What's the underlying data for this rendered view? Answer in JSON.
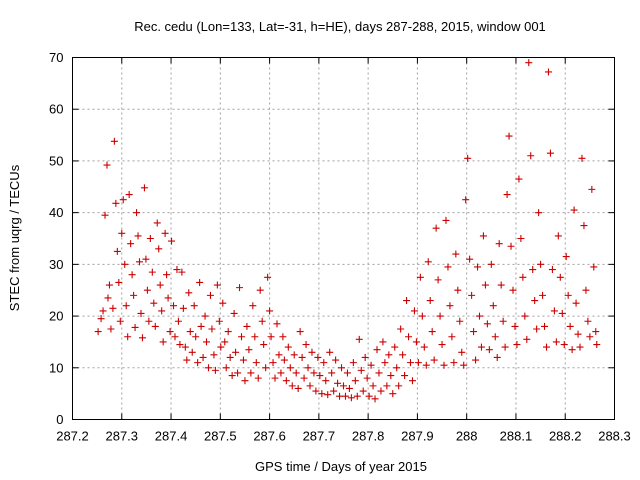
{
  "chart_data": {
    "type": "scatter",
    "title": "Rec. cedu (Lon=133, Lat=-31, h=HE), days 287-288, 2015, window 001",
    "xlabel": "GPS time / Days of year 2015",
    "ylabel": "STEC from uqrg / TECUs",
    "xlim": [
      287.2,
      288.3
    ],
    "ylim": [
      0,
      70
    ],
    "xticks": [
      "287.2",
      "287.3",
      "287.4",
      "287.5",
      "287.6",
      "287.7",
      "287.8",
      "287.9",
      "288",
      "288.1",
      "288.2",
      "288.3"
    ],
    "yticks": [
      "0",
      "10",
      "20",
      "30",
      "40",
      "50",
      "60",
      "70"
    ],
    "grid": true,
    "marker": "plus",
    "color": "#cc0000",
    "points": [
      [
        287.252,
        17
      ],
      [
        287.258,
        19.5
      ],
      [
        287.262,
        21
      ],
      [
        287.266,
        39.5
      ],
      [
        287.27,
        49.2
      ],
      [
        287.272,
        23.5
      ],
      [
        287.275,
        26
      ],
      [
        287.278,
        17.5
      ],
      [
        287.282,
        21.5
      ],
      [
        287.285,
        53.8
      ],
      [
        287.288,
        41.8
      ],
      [
        287.291,
        32.5
      ],
      [
        287.294,
        26.5
      ],
      [
        287.297,
        19
      ],
      [
        287.3,
        36
      ],
      [
        287.303,
        42.5
      ],
      [
        287.306,
        30
      ],
      [
        287.309,
        22
      ],
      [
        287.312,
        16
      ],
      [
        287.315,
        43.5
      ],
      [
        287.318,
        34
      ],
      [
        287.321,
        28
      ],
      [
        287.324,
        24
      ],
      [
        287.327,
        17.8
      ],
      [
        287.33,
        40
      ],
      [
        287.333,
        35.5
      ],
      [
        287.336,
        30.5
      ],
      [
        287.339,
        20.5
      ],
      [
        287.342,
        15.8
      ],
      [
        287.346,
        44.8
      ],
      [
        287.349,
        31
      ],
      [
        287.352,
        25
      ],
      [
        287.355,
        19
      ],
      [
        287.358,
        35
      ],
      [
        287.362,
        28.5
      ],
      [
        287.365,
        22.5
      ],
      [
        287.368,
        18
      ],
      [
        287.372,
        38
      ],
      [
        287.375,
        33
      ],
      [
        287.378,
        26
      ],
      [
        287.381,
        21
      ],
      [
        287.384,
        15
      ],
      [
        287.388,
        36
      ],
      [
        287.391,
        28
      ],
      [
        287.394,
        23.5
      ],
      [
        287.398,
        17
      ],
      [
        287.401,
        34.5
      ],
      [
        287.405,
        22
      ],
      [
        287.408,
        16
      ],
      [
        287.412,
        29
      ],
      [
        287.415,
        19
      ],
      [
        287.418,
        14.5
      ],
      [
        287.422,
        28.5
      ],
      [
        287.425,
        21.5
      ],
      [
        287.429,
        14
      ],
      [
        287.432,
        11.5
      ],
      [
        287.436,
        24.5
      ],
      [
        287.439,
        17
      ],
      [
        287.443,
        13
      ],
      [
        287.447,
        22
      ],
      [
        287.45,
        16
      ],
      [
        287.454,
        11
      ],
      [
        287.458,
        26.5
      ],
      [
        287.461,
        18
      ],
      [
        287.465,
        12
      ],
      [
        287.469,
        20
      ],
      [
        287.472,
        15
      ],
      [
        287.476,
        10
      ],
      [
        287.48,
        24
      ],
      [
        287.483,
        17.5
      ],
      [
        287.487,
        12.5
      ],
      [
        287.49,
        9.5
      ],
      [
        287.494,
        26
      ],
      [
        287.498,
        19
      ],
      [
        287.501,
        14
      ],
      [
        287.505,
        22.5
      ],
      [
        287.509,
        15
      ],
      [
        287.512,
        10
      ],
      [
        287.516,
        17
      ],
      [
        287.52,
        12
      ],
      [
        287.524,
        8.5
      ],
      [
        287.528,
        20.5
      ],
      [
        287.531,
        13
      ],
      [
        287.535,
        9
      ],
      [
        287.539,
        25.5
      ],
      [
        287.543,
        16
      ],
      [
        287.547,
        11.5
      ],
      [
        287.55,
        7.5
      ],
      [
        287.554,
        18
      ],
      [
        287.558,
        13.5
      ],
      [
        287.562,
        9
      ],
      [
        287.566,
        22
      ],
      [
        287.57,
        16
      ],
      [
        287.573,
        11
      ],
      [
        287.577,
        8
      ],
      [
        287.581,
        25
      ],
      [
        287.585,
        19
      ],
      [
        287.588,
        14.5
      ],
      [
        287.592,
        10
      ],
      [
        287.596,
        27.5
      ],
      [
        287.6,
        21
      ],
      [
        287.603,
        16
      ],
      [
        287.607,
        11
      ],
      [
        287.611,
        8
      ],
      [
        287.615,
        18.5
      ],
      [
        287.619,
        12.5
      ],
      [
        287.623,
        9
      ],
      [
        287.627,
        16
      ],
      [
        287.63,
        11.5
      ],
      [
        287.634,
        7.5
      ],
      [
        287.638,
        14
      ],
      [
        287.642,
        10
      ],
      [
        287.646,
        6.5
      ],
      [
        287.65,
        12.5
      ],
      [
        287.654,
        9
      ],
      [
        287.658,
        6
      ],
      [
        287.662,
        17
      ],
      [
        287.666,
        12
      ],
      [
        287.67,
        8
      ],
      [
        287.674,
        14.5
      ],
      [
        287.678,
        10
      ],
      [
        287.682,
        6.5
      ],
      [
        287.686,
        13
      ],
      [
        287.69,
        9
      ],
      [
        287.694,
        5.5
      ],
      [
        287.698,
        12
      ],
      [
        287.702,
        8.5
      ],
      [
        287.706,
        5
      ],
      [
        287.71,
        11
      ],
      [
        287.714,
        7.5
      ],
      [
        287.718,
        4.8
      ],
      [
        287.722,
        13
      ],
      [
        287.726,
        9
      ],
      [
        287.73,
        5.5
      ],
      [
        287.734,
        11.5
      ],
      [
        287.738,
        7
      ],
      [
        287.742,
        4.5
      ],
      [
        287.746,
        10
      ],
      [
        287.75,
        6.5
      ],
      [
        287.754,
        4.5
      ],
      [
        287.758,
        9
      ],
      [
        287.762,
        6
      ],
      [
        287.766,
        4.2
      ],
      [
        287.77,
        11
      ],
      [
        287.774,
        7.5
      ],
      [
        287.778,
        4.5
      ],
      [
        287.782,
        15.5
      ],
      [
        287.786,
        9.5
      ],
      [
        287.79,
        5.5
      ],
      [
        287.794,
        12
      ],
      [
        287.798,
        8
      ],
      [
        287.802,
        4.5
      ],
      [
        287.806,
        10.5
      ],
      [
        287.81,
        6.5
      ],
      [
        287.814,
        4
      ],
      [
        287.818,
        13.5
      ],
      [
        287.822,
        9
      ],
      [
        287.826,
        5.5
      ],
      [
        287.83,
        15
      ],
      [
        287.834,
        11
      ],
      [
        287.838,
        6.5
      ],
      [
        287.842,
        12.5
      ],
      [
        287.846,
        8.5
      ],
      [
        287.85,
        5
      ],
      [
        287.854,
        14
      ],
      [
        287.858,
        10
      ],
      [
        287.862,
        6.5
      ],
      [
        287.866,
        17.5
      ],
      [
        287.87,
        12.5
      ],
      [
        287.874,
        8.5
      ],
      [
        287.878,
        23
      ],
      [
        287.882,
        16
      ],
      [
        287.886,
        11
      ],
      [
        287.89,
        7.5
      ],
      [
        287.894,
        21
      ],
      [
        287.898,
        15
      ],
      [
        287.902,
        11
      ],
      [
        287.906,
        27.5
      ],
      [
        287.91,
        20
      ],
      [
        287.914,
        14
      ],
      [
        287.918,
        10.5
      ],
      [
        287.922,
        30.5
      ],
      [
        287.926,
        23
      ],
      [
        287.93,
        17
      ],
      [
        287.934,
        11.5
      ],
      [
        287.938,
        37
      ],
      [
        287.942,
        27
      ],
      [
        287.946,
        20
      ],
      [
        287.95,
        14.5
      ],
      [
        287.954,
        10.5
      ],
      [
        287.958,
        38.5
      ],
      [
        287.962,
        29.5
      ],
      [
        287.966,
        22
      ],
      [
        287.97,
        16
      ],
      [
        287.974,
        11
      ],
      [
        287.978,
        32
      ],
      [
        287.982,
        25
      ],
      [
        287.986,
        19
      ],
      [
        287.99,
        13
      ],
      [
        287.994,
        10.5
      ],
      [
        287.998,
        42.5
      ],
      [
        288.002,
        50.5
      ],
      [
        288.006,
        31
      ],
      [
        288.01,
        24
      ],
      [
        288.014,
        17
      ],
      [
        288.018,
        11.5
      ],
      [
        288.022,
        29.5
      ],
      [
        288.026,
        20
      ],
      [
        288.03,
        14
      ],
      [
        288.034,
        35.5
      ],
      [
        288.038,
        26
      ],
      [
        288.042,
        18.5
      ],
      [
        288.046,
        13.5
      ],
      [
        288.05,
        30
      ],
      [
        288.054,
        22
      ],
      [
        288.058,
        16
      ],
      [
        288.062,
        12
      ],
      [
        288.066,
        34
      ],
      [
        288.07,
        26
      ],
      [
        288.074,
        19
      ],
      [
        288.078,
        14
      ],
      [
        288.082,
        43.5
      ],
      [
        288.086,
        54.8
      ],
      [
        288.09,
        33.5
      ],
      [
        288.094,
        25
      ],
      [
        288.098,
        18
      ],
      [
        288.102,
        14.5
      ],
      [
        288.106,
        46.5
      ],
      [
        288.11,
        35
      ],
      [
        288.114,
        27.5
      ],
      [
        288.118,
        20
      ],
      [
        288.122,
        15.5
      ],
      [
        288.126,
        69
      ],
      [
        288.13,
        51
      ],
      [
        288.134,
        29
      ],
      [
        288.138,
        23
      ],
      [
        288.142,
        17.5
      ],
      [
        288.146,
        40
      ],
      [
        288.15,
        30
      ],
      [
        288.154,
        24
      ],
      [
        288.158,
        18
      ],
      [
        288.162,
        14
      ],
      [
        288.166,
        67.2
      ],
      [
        288.17,
        51.5
      ],
      [
        288.174,
        29
      ],
      [
        288.178,
        21
      ],
      [
        288.182,
        15
      ],
      [
        288.186,
        35.5
      ],
      [
        288.19,
        27.5
      ],
      [
        288.194,
        20.5
      ],
      [
        288.198,
        14.5
      ],
      [
        288.202,
        31.5
      ],
      [
        288.206,
        24
      ],
      [
        288.21,
        18
      ],
      [
        288.214,
        13.5
      ],
      [
        288.218,
        40.5
      ],
      [
        288.222,
        22.5
      ],
      [
        288.226,
        16.5
      ],
      [
        288.23,
        14
      ],
      [
        288.234,
        50.5
      ],
      [
        288.238,
        37.5
      ],
      [
        288.242,
        25
      ],
      [
        288.246,
        19
      ],
      [
        288.25,
        16
      ],
      [
        288.254,
        44.5
      ],
      [
        288.258,
        29.5
      ],
      [
        288.262,
        17
      ],
      [
        288.264,
        14.5
      ]
    ]
  }
}
